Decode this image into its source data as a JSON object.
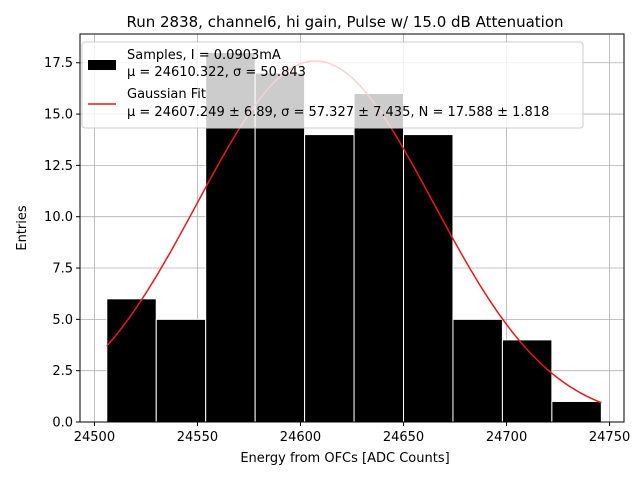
{
  "chart_data": {
    "type": "bar",
    "title": "Run 2838, channel6, hi gain, Pulse w/ 15.0 dB Attenuation",
    "xlabel": "Energy from OFCs [ADC Counts]",
    "ylabel": "Entries",
    "xlim": [
      24493,
      24757
    ],
    "ylim": [
      0,
      18.9
    ],
    "xticks": [
      24500,
      24550,
      24600,
      24650,
      24700,
      24750
    ],
    "xtick_labels": [
      "24500",
      "24550",
      "24600",
      "24650",
      "24700",
      "24750"
    ],
    "yticks": [
      0,
      2.5,
      5,
      7.5,
      10,
      12.5,
      15,
      17.5
    ],
    "ytick_labels": [
      "0.0",
      "2.5",
      "5.0",
      "7.5",
      "10.0",
      "12.5",
      "15.0",
      "17.5"
    ],
    "grid": true,
    "legend_placement": "top-left",
    "bin_edges": [
      24506,
      24530,
      24554,
      24578,
      24602,
      24626,
      24650,
      24674,
      24698,
      24722,
      24746
    ],
    "counts": [
      6,
      5,
      18,
      17,
      14,
      16,
      14,
      5,
      4,
      1
    ],
    "bar_color": "#000000",
    "bar_edge_color": "#ffffff",
    "fit": {
      "mu": 24607.249,
      "sigma": 57.327,
      "N": 17.588,
      "x_range": [
        24506,
        24746
      ],
      "color": "#e41a1c"
    },
    "legend": {
      "samples_line1": "Samples, I = 0.0903mA",
      "samples_line2": "μ = 24610.322, σ = 50.843",
      "fit_line1": "Gaussian Fit",
      "fit_line2": "μ = 24607.249 ± 6.89, σ = 57.327 ± 7.435, N = 17.588 ± 1.818"
    }
  }
}
